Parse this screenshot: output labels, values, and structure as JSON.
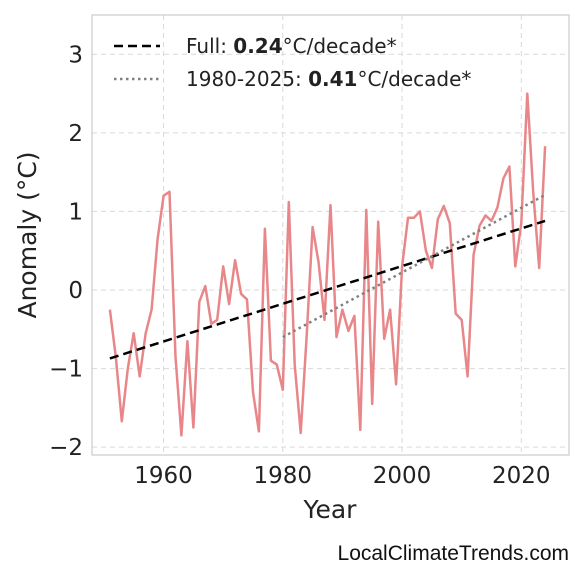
{
  "chart_data": {
    "type": "line",
    "xlabel": "Year",
    "ylabel": "Anomaly (°C)",
    "xlim": [
      1948,
      2028
    ],
    "ylim": [
      -2.1,
      3.5
    ],
    "xticks": [
      1960,
      1980,
      2000,
      2020
    ],
    "yticks": [
      3,
      2,
      1,
      0,
      -1,
      -2
    ],
    "ytick_labels": [
      "3",
      "2",
      "1",
      "0",
      "−1",
      "−2"
    ],
    "grid": true,
    "legend_position": "top-left",
    "series": [
      {
        "color": "#e8878a",
        "x": [
          1951,
          1952,
          1953,
          1954,
          1955,
          1956,
          1957,
          1958,
          1959,
          1960,
          1961,
          1962,
          1963,
          1964,
          1965,
          1966,
          1967,
          1968,
          1969,
          1970,
          1971,
          1972,
          1973,
          1974,
          1975,
          1976,
          1977,
          1978,
          1979,
          1980,
          1981,
          1982,
          1983,
          1984,
          1985,
          1986,
          1987,
          1988,
          1989,
          1990,
          1991,
          1992,
          1993,
          1994,
          1995,
          1996,
          1997,
          1998,
          1999,
          2000,
          2001,
          2002,
          2003,
          2004,
          2005,
          2006,
          2007,
          2008,
          2009,
          2010,
          2011,
          2012,
          2013,
          2014,
          2015,
          2016,
          2017,
          2018,
          2019,
          2020,
          2021,
          2022,
          2023,
          2024
        ],
        "y": [
          -0.25,
          -0.85,
          -1.67,
          -1.0,
          -0.55,
          -1.1,
          -0.55,
          -0.25,
          0.65,
          1.2,
          1.25,
          -0.85,
          -1.85,
          -0.65,
          -1.75,
          -0.15,
          0.05,
          -0.43,
          -0.38,
          0.3,
          -0.18,
          0.38,
          -0.05,
          -0.12,
          -1.3,
          -1.8,
          0.78,
          -0.9,
          -0.95,
          -1.27,
          1.12,
          -0.95,
          -1.82,
          -0.6,
          0.8,
          0.35,
          -0.38,
          1.08,
          -0.6,
          -0.25,
          -0.52,
          -0.33,
          -1.78,
          1.02,
          -1.45,
          0.87,
          -0.62,
          -0.25,
          -1.2,
          0.3,
          0.92,
          0.92,
          1.0,
          0.5,
          0.28,
          0.9,
          1.07,
          0.85,
          -0.3,
          -0.38,
          -1.1,
          0.45,
          0.82,
          0.95,
          0.88,
          1.05,
          1.42,
          1.57,
          0.3,
          0.85,
          2.5,
          1.25,
          0.28,
          1.83
        ]
      },
      {
        "name": "Full: 0.24°C/decade*",
        "label_prefix": "Full: ",
        "label_value": "0.24",
        "label_suffix": "°C/decade*",
        "color": "#000000",
        "style": "dashed",
        "x": [
          1951,
          2024
        ],
        "y": [
          -0.87,
          0.88
        ]
      },
      {
        "name": "1980-2025: 0.41°C/decade*",
        "label_prefix": "1980-2025: ",
        "label_value": "0.41",
        "label_suffix": "°C/decade*",
        "color": "#808080",
        "style": "dotted",
        "x": [
          1980,
          2024
        ],
        "y": [
          -0.6,
          1.21
        ]
      }
    ]
  },
  "watermark": "LocalClimateTrends.com"
}
